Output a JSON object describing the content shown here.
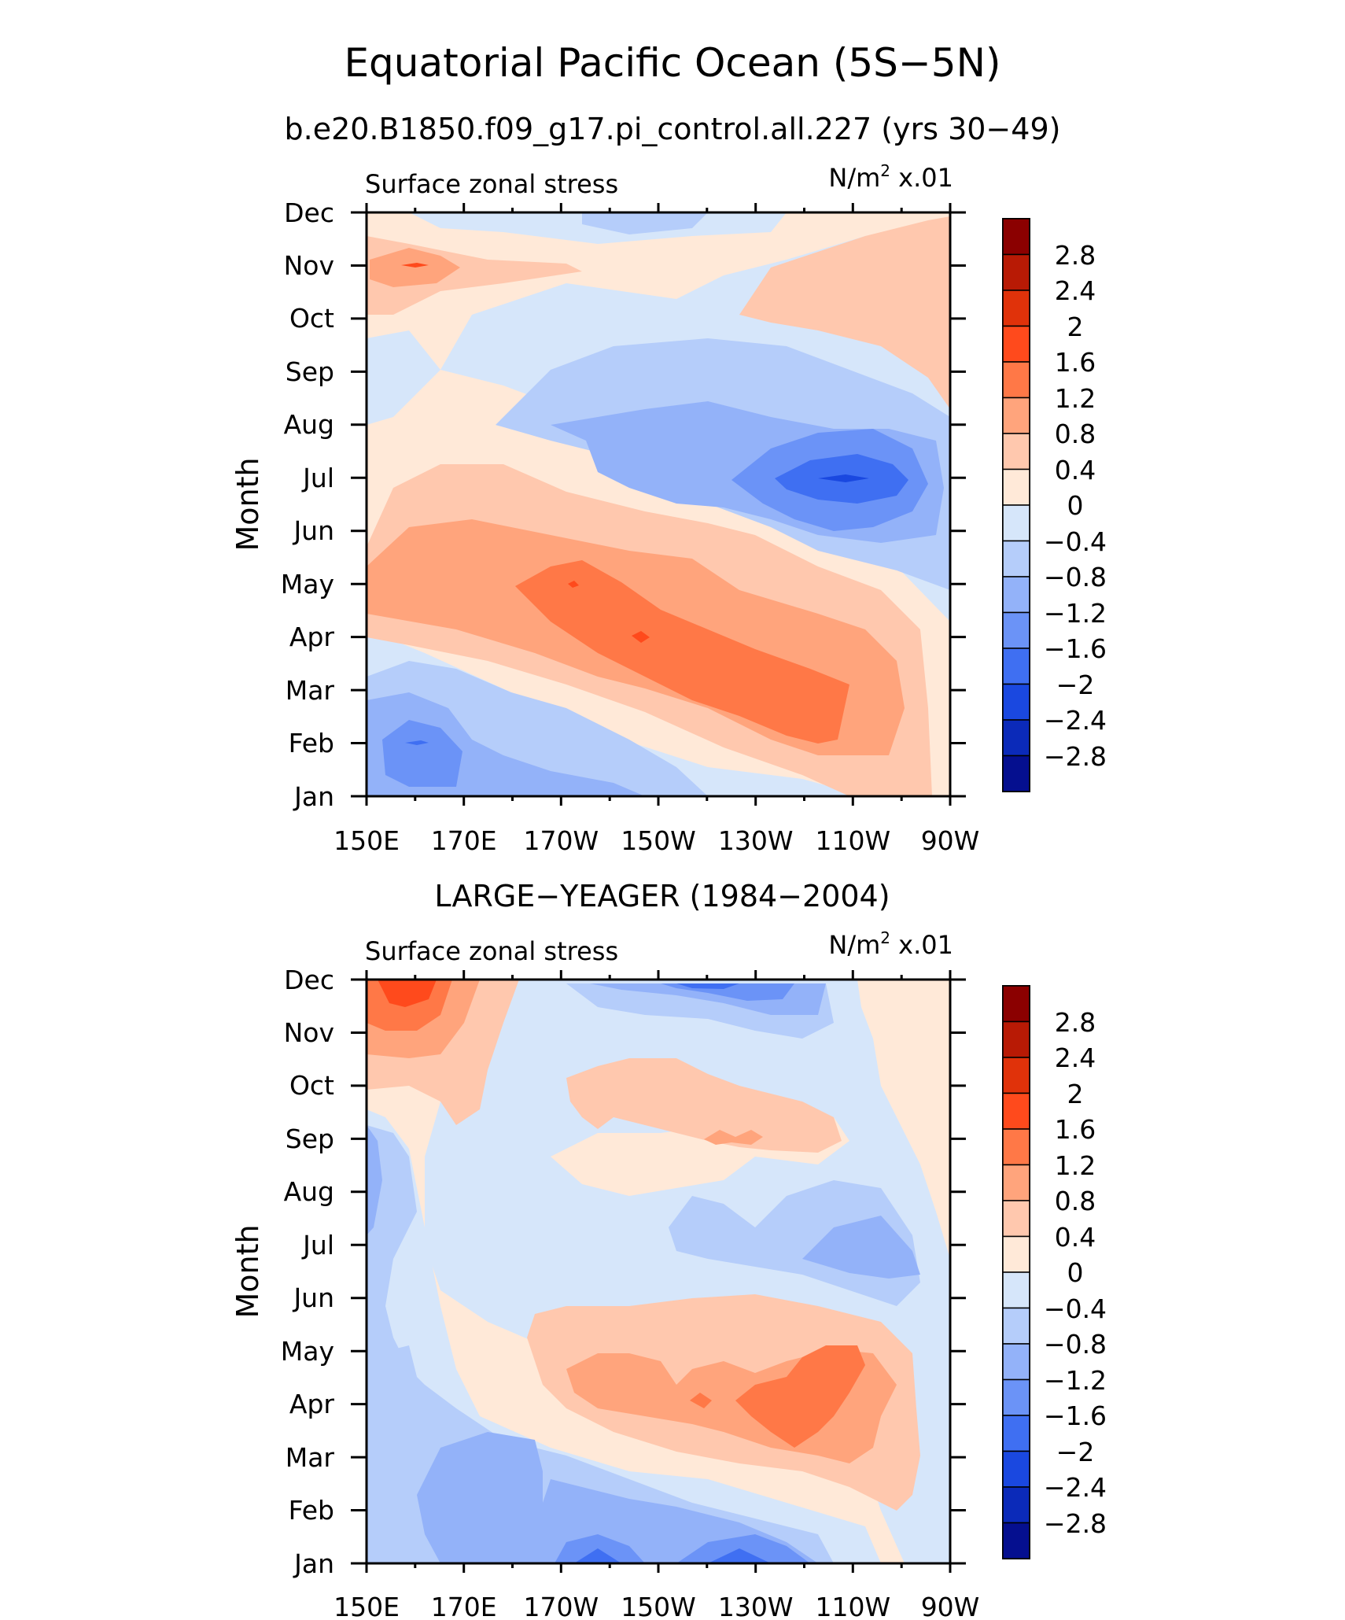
{
  "main_title": "Equatorial Pacific Ocean (5S−5N)",
  "colorbar_labels": [
    "2.8",
    "2.4",
    "2",
    "1.6",
    "1.2",
    "0.8",
    "0.4",
    "0",
    "−0.4",
    "−0.8",
    "−1.2",
    "−1.6",
    "−2",
    "−2.4",
    "−2.8"
  ],
  "colors": {
    "levels": [
      "#8b0000",
      "#b81a05",
      "#e0320a",
      "#ff4a1c",
      "#ff7847",
      "#ffa47c",
      "#ffc8ae",
      "#ffe9d8",
      "#d6e6fa",
      "#b5cdfa",
      "#93b2f9",
      "#6b93f7",
      "#3f6ff2",
      "#1a48e0",
      "#0b2ab9",
      "#050f8f"
    ],
    "frame": "#000000"
  },
  "chart_data": [
    {
      "type": "filled-contour",
      "title": "b.e20.B1850.f09_g17.pi_control.all.227 (yrs 30−49)",
      "left_string": "Surface zonal stress",
      "right_string": "N/m² x.01",
      "units_base": "N/m",
      "units_exp": "2",
      "units_scale": " x.01",
      "ylabel": "Month",
      "x_ticks": [
        "150E",
        "170E",
        "170W",
        "150W",
        "130W",
        "110W",
        "90W"
      ],
      "y_ticks": [
        "Jan",
        "Feb",
        "Mar",
        "Apr",
        "May",
        "Jun",
        "Jul",
        "Aug",
        "Sep",
        "Oct",
        "Nov",
        "Dec"
      ],
      "xlim": [
        "150E",
        "90W"
      ],
      "contour_levels": [
        -2.8,
        -2.4,
        -2,
        -1.6,
        -1.2,
        -0.8,
        -0.4,
        0,
        0.4,
        0.8,
        1.2,
        1.6,
        2,
        2.4,
        2.8
      ],
      "features": [
        {
          "region": "150E-165E, Jan-Feb",
          "min": -1.8
        },
        {
          "region": "170W-100W, Mar-May",
          "max": 1.6
        },
        {
          "region": "130W-95W, Jul",
          "min": -2.4
        },
        {
          "region": "150E-170E, Nov",
          "max": 1.6
        },
        {
          "region": "130W-90W, Oct-Nov",
          "max": 0.8
        }
      ]
    },
    {
      "type": "filled-contour",
      "title": "LARGE−YEAGER (1984−2004)",
      "left_string": "Surface zonal stress",
      "right_string": "N/m² x.01",
      "units_base": "N/m",
      "units_exp": "2",
      "units_scale": " x.01",
      "ylabel": "Month",
      "x_ticks": [
        "150E",
        "170E",
        "170W",
        "150W",
        "130W",
        "110W",
        "90W"
      ],
      "y_ticks": [
        "Jan",
        "Feb",
        "Mar",
        "Apr",
        "May",
        "Jun",
        "Jul",
        "Aug",
        "Sep",
        "Oct",
        "Nov",
        "Dec"
      ],
      "xlim": [
        "150E",
        "90W"
      ],
      "contour_levels": [
        -2.8,
        -2.4,
        -2,
        -1.6,
        -1.2,
        -0.8,
        -0.4,
        0,
        0.4,
        0.8,
        1.2,
        1.6,
        2,
        2.4,
        2.8
      ],
      "features": [
        {
          "region": "150E-165E, Nov-Dec",
          "max": 1.6
        },
        {
          "region": "150W-110W, Mar-May",
          "max": 1.2
        },
        {
          "region": "170W-130W, Jan",
          "min": -1.6
        },
        {
          "region": "130W-120W, Dec",
          "min": -1.6
        },
        {
          "region": "150W-120W, Sep-Oct",
          "max": 0.8
        }
      ]
    }
  ]
}
